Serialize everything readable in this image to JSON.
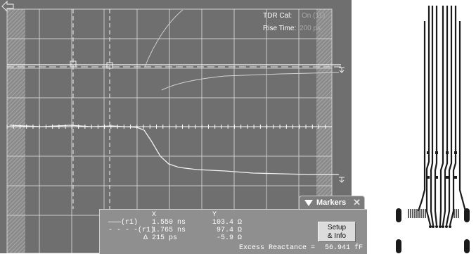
{
  "scope": {
    "tdr_cal_label": "TDR Cal:",
    "tdr_cal_value": "On (11)",
    "rise_time_label": "Rise Time:",
    "rise_time_value": "200 ps",
    "back_icon": "back-arrow-icon"
  },
  "markers": {
    "tab_label": "Markers",
    "close_icon": "close-icon",
    "collapse_icon": "triangle-down-icon",
    "col_x": "X",
    "col_y": "Y",
    "rows": [
      {
        "symbol": "———(r1)",
        "x": "1.550 ns",
        "y": "103.4 Ω"
      },
      {
        "symbol": "- - - -(r1)",
        "x": "1.765 ns",
        "y": "97.4 Ω"
      },
      {
        "symbol": "Δ",
        "x": "215 ps",
        "y": "-5.9 Ω"
      }
    ],
    "setup_line1": "Setup",
    "setup_line2": "& Info",
    "excess_label": "Excess Reactance =",
    "excess_value": "56.941 fF"
  },
  "colors": {
    "screen_bg": "#6f6f6f",
    "trace": "#f2f2f2",
    "grid": "#d8d8d8",
    "board": "#1a1a1a"
  }
}
